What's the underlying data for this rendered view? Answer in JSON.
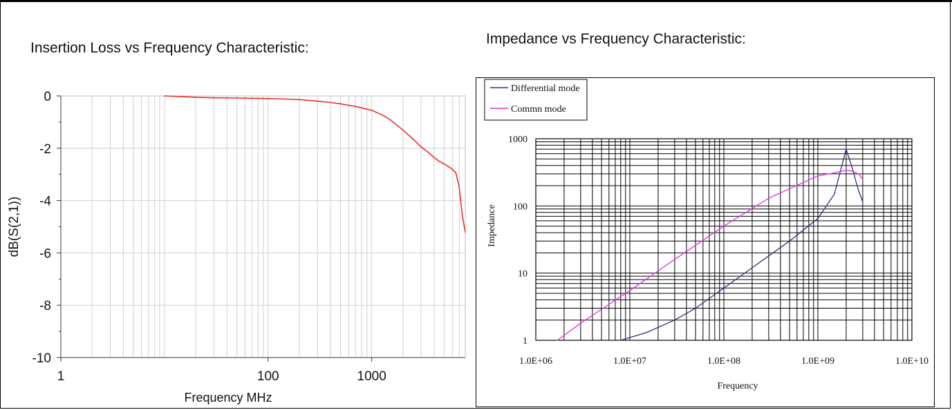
{
  "left_heading": "Insertion Loss vs Frequency Characteristic:",
  "right_heading": "Impedance vs Frequency Characteristic:",
  "chart_data": [
    {
      "type": "line",
      "title": "",
      "xlabel": "Frequency  MHz",
      "ylabel": "dB(S(2,1))",
      "x_scale": "log",
      "xlim": [
        1,
        8000
      ],
      "ylim": [
        -10,
        0
      ],
      "x_ticks": [
        1,
        100,
        1000
      ],
      "x_tick_labels": [
        "1",
        "100",
        "1000"
      ],
      "y_ticks": [
        0,
        -2,
        -4,
        -6,
        -8,
        -10
      ],
      "y_tick_labels": [
        "0",
        "-2",
        "-4",
        "-6",
        "-8",
        "-10"
      ],
      "grid": true,
      "series": [
        {
          "color": "#e8302a",
          "x": [
            10,
            15,
            20,
            30,
            50,
            70,
            100,
            150,
            200,
            300,
            400,
            500,
            700,
            1000,
            1300,
            1500,
            2000,
            2500,
            3000,
            3500,
            4000,
            4500,
            5000,
            5500,
            6000,
            6500,
            7000,
            7500,
            8000
          ],
          "y": [
            0.0,
            -0.03,
            -0.05,
            -0.07,
            -0.08,
            -0.09,
            -0.1,
            -0.12,
            -0.14,
            -0.2,
            -0.25,
            -0.3,
            -0.4,
            -0.55,
            -0.75,
            -0.9,
            -1.3,
            -1.65,
            -1.95,
            -2.15,
            -2.35,
            -2.5,
            -2.6,
            -2.7,
            -2.8,
            -2.95,
            -3.5,
            -4.6,
            -5.2
          ]
        }
      ]
    },
    {
      "type": "line",
      "title": "",
      "xlabel": "Frequency",
      "ylabel": "Impedance",
      "x_scale": "log",
      "y_scale": "log",
      "xlim": [
        1000000,
        10000000000
      ],
      "ylim": [
        1,
        1000
      ],
      "x_tick_labels": [
        "1.0E+06",
        "1.0E+07",
        "1.0E+08",
        "1.0E+09",
        "1.0E+10"
      ],
      "y_tick_labels": [
        "1",
        "10",
        "100",
        "1000"
      ],
      "grid": true,
      "legend": "top-left",
      "series": [
        {
          "name": "Differential mode",
          "color": "#2b2f7a",
          "x": [
            8000000,
            15000000,
            30000000,
            50000000,
            100000000,
            200000000,
            500000000,
            1000000000,
            1500000000,
            1800000000,
            2000000000,
            2300000000,
            2700000000,
            3000000000
          ],
          "y": [
            1.0,
            1.3,
            2.0,
            3.0,
            6.0,
            12.0,
            30.0,
            65.0,
            150.0,
            400.0,
            700.0,
            380.0,
            170.0,
            115.0
          ]
        },
        {
          "name": "Commn mode",
          "color": "#e22fe0",
          "x": [
            1700000,
            3000000,
            10000000,
            30000000,
            100000000,
            300000000,
            1000000000,
            1500000000,
            2000000000,
            2300000000,
            2700000000,
            3000000000
          ],
          "y": [
            1.0,
            1.8,
            5.5,
            16.0,
            50.0,
            130.0,
            280.0,
            310.0,
            340.0,
            330.0,
            300.0,
            250.0
          ]
        }
      ]
    }
  ]
}
